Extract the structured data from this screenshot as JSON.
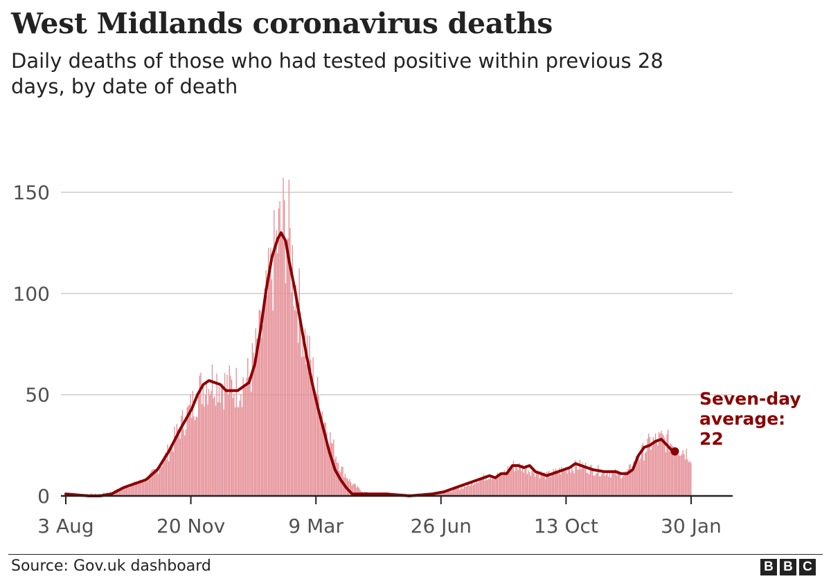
{
  "title": "West Midlands coronavirus deaths",
  "subtitle": "Daily deaths of those who had tested positive within previous 28 days, by date of death",
  "source": "Source: Gov.uk dashboard",
  "logo": [
    "B",
    "B",
    "C"
  ],
  "colors": {
    "bars": "#e48e95",
    "line": "#8b0000",
    "text": "#222222",
    "grid": "#cccccc"
  },
  "chart_data": {
    "type": "bar",
    "overlay": "line",
    "ylim": [
      0,
      150
    ],
    "yticks": [
      0,
      50,
      100,
      150
    ],
    "xticks": [
      "3 Aug",
      "20 Nov",
      "9 Mar",
      "26 Jun",
      "13 Oct",
      "30 Jan"
    ],
    "grid": true,
    "days": 546,
    "daily_deaths_anchors": [
      [
        0,
        1
      ],
      [
        20,
        1
      ],
      [
        30,
        1
      ],
      [
        40,
        2
      ],
      [
        50,
        4
      ],
      [
        60,
        6
      ],
      [
        70,
        8
      ],
      [
        80,
        13
      ],
      [
        90,
        22
      ],
      [
        100,
        34
      ],
      [
        110,
        44
      ],
      [
        120,
        55
      ],
      [
        130,
        58
      ],
      [
        140,
        54
      ],
      [
        150,
        54
      ],
      [
        160,
        58
      ],
      [
        170,
        78
      ],
      [
        180,
        110
      ],
      [
        185,
        126
      ],
      [
        190,
        134
      ],
      [
        195,
        128
      ],
      [
        200,
        106
      ],
      [
        210,
        74
      ],
      [
        220,
        50
      ],
      [
        230,
        30
      ],
      [
        240,
        14
      ],
      [
        250,
        6
      ],
      [
        260,
        2
      ],
      [
        270,
        1
      ],
      [
        300,
        1
      ],
      [
        320,
        1
      ],
      [
        340,
        3
      ],
      [
        350,
        5
      ],
      [
        360,
        8
      ],
      [
        370,
        10
      ],
      [
        380,
        10
      ],
      [
        390,
        15
      ],
      [
        400,
        14
      ],
      [
        410,
        12
      ],
      [
        420,
        10
      ],
      [
        430,
        12
      ],
      [
        440,
        14
      ],
      [
        450,
        15
      ],
      [
        460,
        13
      ],
      [
        470,
        12
      ],
      [
        480,
        11
      ],
      [
        490,
        11
      ],
      [
        500,
        19
      ],
      [
        510,
        26
      ],
      [
        520,
        28
      ],
      [
        530,
        26
      ],
      [
        546,
        20
      ]
    ],
    "seven_day_average": [
      [
        0,
        1
      ],
      [
        20,
        0
      ],
      [
        30,
        0
      ],
      [
        40,
        1
      ],
      [
        50,
        4
      ],
      [
        60,
        6
      ],
      [
        70,
        8
      ],
      [
        80,
        13
      ],
      [
        90,
        22
      ],
      [
        100,
        33
      ],
      [
        110,
        43
      ],
      [
        115,
        50
      ],
      [
        120,
        55
      ],
      [
        125,
        57
      ],
      [
        130,
        56
      ],
      [
        135,
        55
      ],
      [
        140,
        52
      ],
      [
        150,
        52
      ],
      [
        160,
        56
      ],
      [
        165,
        65
      ],
      [
        170,
        82
      ],
      [
        175,
        102
      ],
      [
        180,
        118
      ],
      [
        185,
        127
      ],
      [
        188,
        130
      ],
      [
        192,
        126
      ],
      [
        195,
        116
      ],
      [
        200,
        102
      ],
      [
        205,
        86
      ],
      [
        210,
        70
      ],
      [
        215,
        56
      ],
      [
        220,
        44
      ],
      [
        225,
        33
      ],
      [
        230,
        22
      ],
      [
        235,
        13
      ],
      [
        240,
        8
      ],
      [
        245,
        4
      ],
      [
        250,
        1
      ],
      [
        255,
        1
      ],
      [
        260,
        1
      ],
      [
        280,
        1
      ],
      [
        300,
        0
      ],
      [
        320,
        1
      ],
      [
        330,
        2
      ],
      [
        340,
        4
      ],
      [
        350,
        6
      ],
      [
        360,
        8
      ],
      [
        370,
        10
      ],
      [
        375,
        9
      ],
      [
        380,
        11
      ],
      [
        385,
        11
      ],
      [
        390,
        15
      ],
      [
        395,
        15
      ],
      [
        400,
        14
      ],
      [
        405,
        15
      ],
      [
        410,
        12
      ],
      [
        420,
        10
      ],
      [
        430,
        12
      ],
      [
        440,
        14
      ],
      [
        445,
        16
      ],
      [
        450,
        15
      ],
      [
        455,
        14
      ],
      [
        460,
        13
      ],
      [
        470,
        12
      ],
      [
        480,
        12
      ],
      [
        485,
        11
      ],
      [
        490,
        11
      ],
      [
        495,
        13
      ],
      [
        500,
        20
      ],
      [
        505,
        24
      ],
      [
        510,
        25
      ],
      [
        515,
        27
      ],
      [
        520,
        28
      ],
      [
        525,
        25
      ],
      [
        530,
        22
      ]
    ],
    "annotation": {
      "text": [
        "Seven-day",
        "average:",
        "22"
      ],
      "value": 22
    }
  }
}
